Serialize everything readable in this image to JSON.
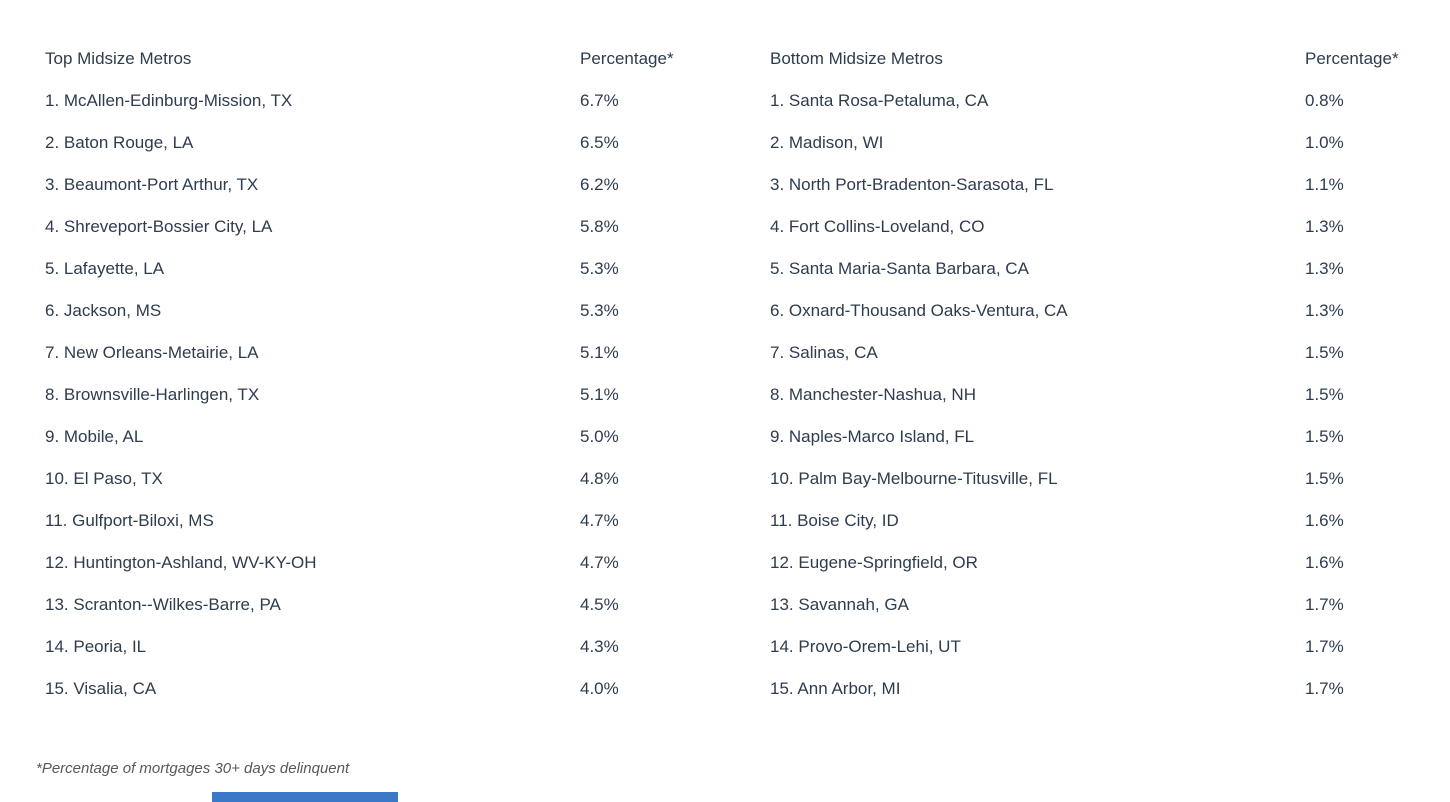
{
  "colors": {
    "text": "#2e3c4e",
    "note": "#55595e",
    "bottom_bar": "#3b79c6"
  },
  "note": "*Percentage of mortgages 30+ days delinquent",
  "chart_data": [
    {
      "type": "table",
      "title": "Top Midsize Metros",
      "columns": [
        "Top Midsize Metros",
        "Percentage*"
      ],
      "value_unit": "percent of mortgages 30+ days delinquent",
      "rows": [
        [
          "1. McAllen-Edinburg-Mission, TX",
          "6.7%"
        ],
        [
          "2. Baton Rouge, LA",
          "6.5%"
        ],
        [
          "3. Beaumont-Port Arthur, TX",
          "6.2%"
        ],
        [
          "4. Shreveport-Bossier City, LA",
          "5.8%"
        ],
        [
          "5. Lafayette, LA",
          "5.3%"
        ],
        [
          "6. Jackson, MS",
          "5.3%"
        ],
        [
          "7. New Orleans-Metairie, LA",
          "5.1%"
        ],
        [
          "8. Brownsville-Harlingen, TX",
          "5.1%"
        ],
        [
          "9. Mobile, AL",
          "5.0%"
        ],
        [
          "10. El Paso, TX",
          "4.8%"
        ],
        [
          "11. Gulfport-Biloxi, MS",
          "4.7%"
        ],
        [
          "12. Huntington-Ashland, WV-KY-OH",
          "4.7%"
        ],
        [
          "13. Scranton--Wilkes-Barre, PA",
          "4.5%"
        ],
        [
          "14. Peoria, IL",
          "4.3%"
        ],
        [
          "15. Visalia, CA",
          "4.0%"
        ]
      ]
    },
    {
      "type": "table",
      "title": "Bottom Midsize Metros",
      "columns": [
        "Bottom Midsize Metros",
        "Percentage*"
      ],
      "value_unit": "percent of mortgages 30+ days delinquent",
      "rows": [
        [
          "1. Santa Rosa-Petaluma, CA",
          "0.8%"
        ],
        [
          "2. Madison, WI",
          "1.0%"
        ],
        [
          "3. North Port-Bradenton-Sarasota, FL",
          "1.1%"
        ],
        [
          "4. Fort Collins-Loveland, CO",
          "1.3%"
        ],
        [
          "5. Santa Maria-Santa Barbara, CA",
          "1.3%"
        ],
        [
          "6. Oxnard-Thousand Oaks-Ventura, CA",
          "1.3%"
        ],
        [
          "7. Salinas, CA",
          "1.5%"
        ],
        [
          "8. Manchester-Nashua, NH",
          "1.5%"
        ],
        [
          "9. Naples-Marco Island, FL",
          "1.5%"
        ],
        [
          "10. Palm Bay-Melbourne-Titusville, FL",
          "1.5%"
        ],
        [
          "11. Boise City, ID",
          "1.6%"
        ],
        [
          "12. Eugene-Springfield, OR",
          "1.6%"
        ],
        [
          "13. Savannah, GA",
          "1.7%"
        ],
        [
          "14. Provo-Orem-Lehi, UT",
          "1.7%"
        ],
        [
          "15. Ann Arbor, MI",
          "1.7%"
        ]
      ]
    }
  ]
}
